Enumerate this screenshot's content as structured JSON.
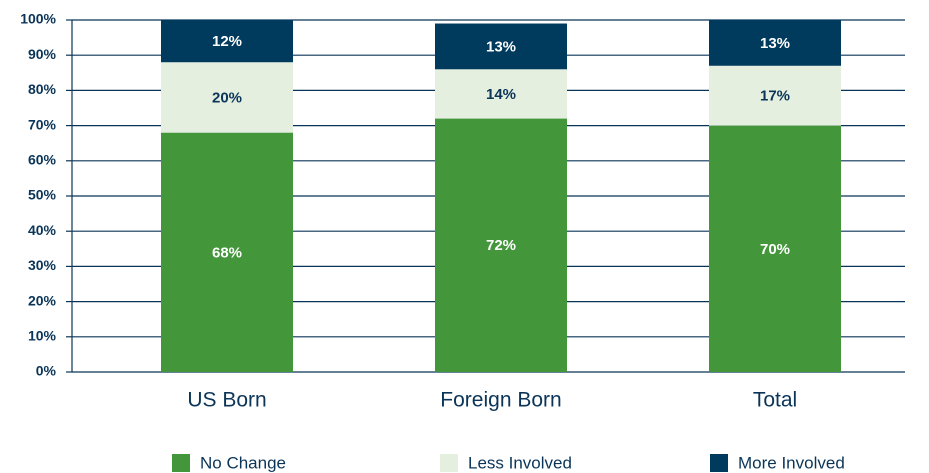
{
  "chart_data": {
    "type": "stacked_bar",
    "categories": [
      "US Born",
      "Foreign Born",
      "Total"
    ],
    "series": [
      {
        "name": "No Change",
        "color": "#43963a",
        "values": [
          68,
          72,
          70
        ],
        "value_labels": [
          "68%",
          "72%",
          "70%"
        ]
      },
      {
        "name": "Less Involved",
        "color": "#e4efe0",
        "values": [
          20,
          14,
          17
        ],
        "value_labels": [
          "20%",
          "14%",
          "17%"
        ]
      },
      {
        "name": "More Involved",
        "color": "#003a5c",
        "values": [
          12,
          13,
          13
        ],
        "value_labels": [
          "12%",
          "13%",
          "13%"
        ]
      }
    ],
    "ylim": [
      0,
      100
    ],
    "yticks": [
      {
        "value": 0,
        "label": "0%"
      },
      {
        "value": 10,
        "label": "10%"
      },
      {
        "value": 20,
        "label": "20%"
      },
      {
        "value": 30,
        "label": "30%"
      },
      {
        "value": 40,
        "label": "40%"
      },
      {
        "value": 50,
        "label": "50%"
      },
      {
        "value": 60,
        "label": "60%"
      },
      {
        "value": 70,
        "label": "70%"
      },
      {
        "value": 80,
        "label": "80%"
      },
      {
        "value": 90,
        "label": "90%"
      },
      {
        "value": 100,
        "label": "100%"
      }
    ],
    "grid": true,
    "legend": "bottom"
  }
}
